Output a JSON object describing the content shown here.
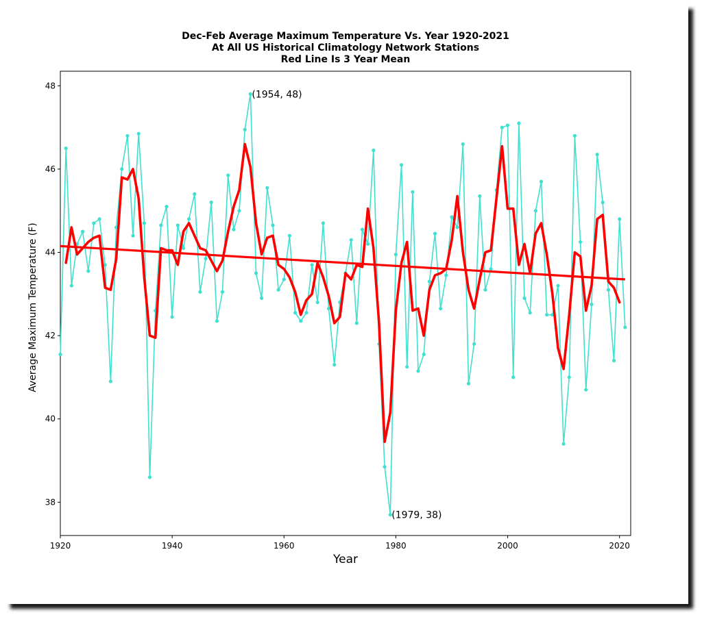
{
  "chart_data": {
    "type": "line",
    "title": [
      "Dec-Feb Average Maximum Temperature Vs. Year 1920-2021",
      "At All US Historical Climatology Network Stations",
      "Red Line Is 3 Year Mean"
    ],
    "xlabel": "Year",
    "ylabel": "Average Maximum Temperature (F)",
    "xlim": [
      1920,
      2022
    ],
    "ylim": [
      37.2,
      48.35
    ],
    "xticks": [
      1920,
      1940,
      1960,
      1980,
      2000,
      2020
    ],
    "yticks": [
      38,
      40,
      42,
      44,
      46,
      48
    ],
    "grid": false,
    "colors": {
      "annual": "#40e0d0",
      "mean": "#ff0000",
      "trend": "#ff0000",
      "axes": "#000000"
    },
    "series": [
      {
        "role": "annual",
        "x": [
          1920,
          1921,
          1922,
          1923,
          1924,
          1925,
          1926,
          1927,
          1928,
          1929,
          1930,
          1931,
          1932,
          1933,
          1934,
          1935,
          1936,
          1937,
          1938,
          1939,
          1940,
          1941,
          1942,
          1943,
          1944,
          1945,
          1946,
          1947,
          1948,
          1949,
          1950,
          1951,
          1952,
          1953,
          1954,
          1955,
          1956,
          1957,
          1958,
          1959,
          1960,
          1961,
          1962,
          1963,
          1964,
          1965,
          1966,
          1967,
          1968,
          1969,
          1970,
          1971,
          1972,
          1973,
          1974,
          1975,
          1976,
          1977,
          1978,
          1979,
          1980,
          1981,
          1982,
          1983,
          1984,
          1985,
          1986,
          1987,
          1988,
          1989,
          1990,
          1991,
          1992,
          1993,
          1994,
          1995,
          1996,
          1997,
          1998,
          1999,
          2000,
          2001,
          2002,
          2003,
          2004,
          2005,
          2006,
          2007,
          2008,
          2009,
          2010,
          2011,
          2012,
          2013,
          2014,
          2015,
          2016,
          2017,
          2018,
          2019,
          2020,
          2021
        ],
        "values": [
          41.55,
          46.5,
          43.2,
          44.2,
          44.5,
          43.55,
          44.7,
          44.8,
          43.7,
          40.9,
          44.6,
          46.0,
          46.8,
          44.4,
          46.85,
          44.7,
          38.6,
          42.6,
          44.65,
          45.1,
          42.45,
          44.65,
          44.1,
          44.8,
          45.4,
          43.05,
          43.85,
          45.2,
          42.35,
          43.05,
          45.85,
          44.55,
          45.0,
          46.95,
          47.8,
          43.5,
          42.9,
          45.55,
          44.65,
          43.1,
          43.35,
          44.4,
          42.55,
          42.35,
          42.55,
          43.7,
          42.8,
          44.7,
          42.65,
          41.3,
          42.8,
          43.5,
          44.3,
          42.3,
          44.55,
          44.2,
          46.45,
          41.8,
          38.85,
          37.7,
          43.95,
          46.1,
          41.25,
          45.45,
          41.15,
          41.55,
          43.3,
          44.45,
          42.65,
          43.45,
          44.85,
          44.6,
          46.6,
          40.85,
          41.8,
          45.35,
          43.1,
          43.6,
          45.5,
          47.0,
          47.05,
          41.0,
          47.1,
          42.9,
          42.55,
          45.0,
          45.7,
          42.5,
          42.5,
          43.2,
          39.4,
          41.0,
          46.8,
          44.25,
          40.7,
          42.75,
          46.35,
          45.2,
          43.1,
          41.4,
          44.8,
          42.2
        ]
      },
      {
        "role": "3-year mean",
        "x": [
          1921,
          1922,
          1923,
          1924,
          1925,
          1926,
          1927,
          1928,
          1929,
          1930,
          1931,
          1932,
          1933,
          1934,
          1935,
          1936,
          1937,
          1938,
          1939,
          1940,
          1941,
          1942,
          1943,
          1944,
          1945,
          1946,
          1947,
          1948,
          1949,
          1950,
          1951,
          1952,
          1953,
          1954,
          1955,
          1956,
          1957,
          1958,
          1959,
          1960,
          1961,
          1962,
          1963,
          1964,
          1965,
          1966,
          1967,
          1968,
          1969,
          1970,
          1971,
          1972,
          1973,
          1974,
          1975,
          1976,
          1977,
          1978,
          1979,
          1980,
          1981,
          1982,
          1983,
          1984,
          1985,
          1986,
          1987,
          1988,
          1989,
          1990,
          1991,
          1992,
          1993,
          1994,
          1995,
          1996,
          1997,
          1998,
          1999,
          2000,
          2001,
          2002,
          2003,
          2004,
          2005,
          2006,
          2007,
          2008,
          2009,
          2010,
          2011,
          2012,
          2013,
          2014,
          2015,
          2016,
          2017,
          2018,
          2019,
          2020
        ],
        "values": [
          43.75,
          44.6,
          43.95,
          44.1,
          44.25,
          44.35,
          44.4,
          43.15,
          43.1,
          43.85,
          45.8,
          45.75,
          46.0,
          45.3,
          43.4,
          42.0,
          41.95,
          44.1,
          44.05,
          44.05,
          43.7,
          44.5,
          44.7,
          44.4,
          44.1,
          44.05,
          43.8,
          43.55,
          43.8,
          44.5,
          45.1,
          45.5,
          46.6,
          46.05,
          44.7,
          43.95,
          44.35,
          44.4,
          43.7,
          43.6,
          43.4,
          43.05,
          42.5,
          42.85,
          43.0,
          43.75,
          43.4,
          42.95,
          42.3,
          42.45,
          43.5,
          43.35,
          43.7,
          43.65,
          45.05,
          44.1,
          42.3,
          39.45,
          40.15,
          42.6,
          43.75,
          44.25,
          42.6,
          42.65,
          42.0,
          43.1,
          43.45,
          43.5,
          43.6,
          44.3,
          45.35,
          44.0,
          43.1,
          42.65,
          43.35,
          44.0,
          44.05,
          45.3,
          46.55,
          45.05,
          45.05,
          43.7,
          44.2,
          43.5,
          44.45,
          44.7,
          43.95,
          43.0,
          41.7,
          41.2,
          42.5,
          44.0,
          43.9,
          42.6,
          43.2,
          44.8,
          44.9,
          43.3,
          43.15,
          42.8
        ]
      },
      {
        "role": "linear trend",
        "x": [
          1920,
          2021
        ],
        "values": [
          44.15,
          43.35
        ]
      }
    ],
    "annotations": [
      {
        "label": "(1954, 48)",
        "x": 1954,
        "y": 47.8
      },
      {
        "label": "(1979, 38)",
        "x": 1979,
        "y": 37.7
      }
    ]
  }
}
